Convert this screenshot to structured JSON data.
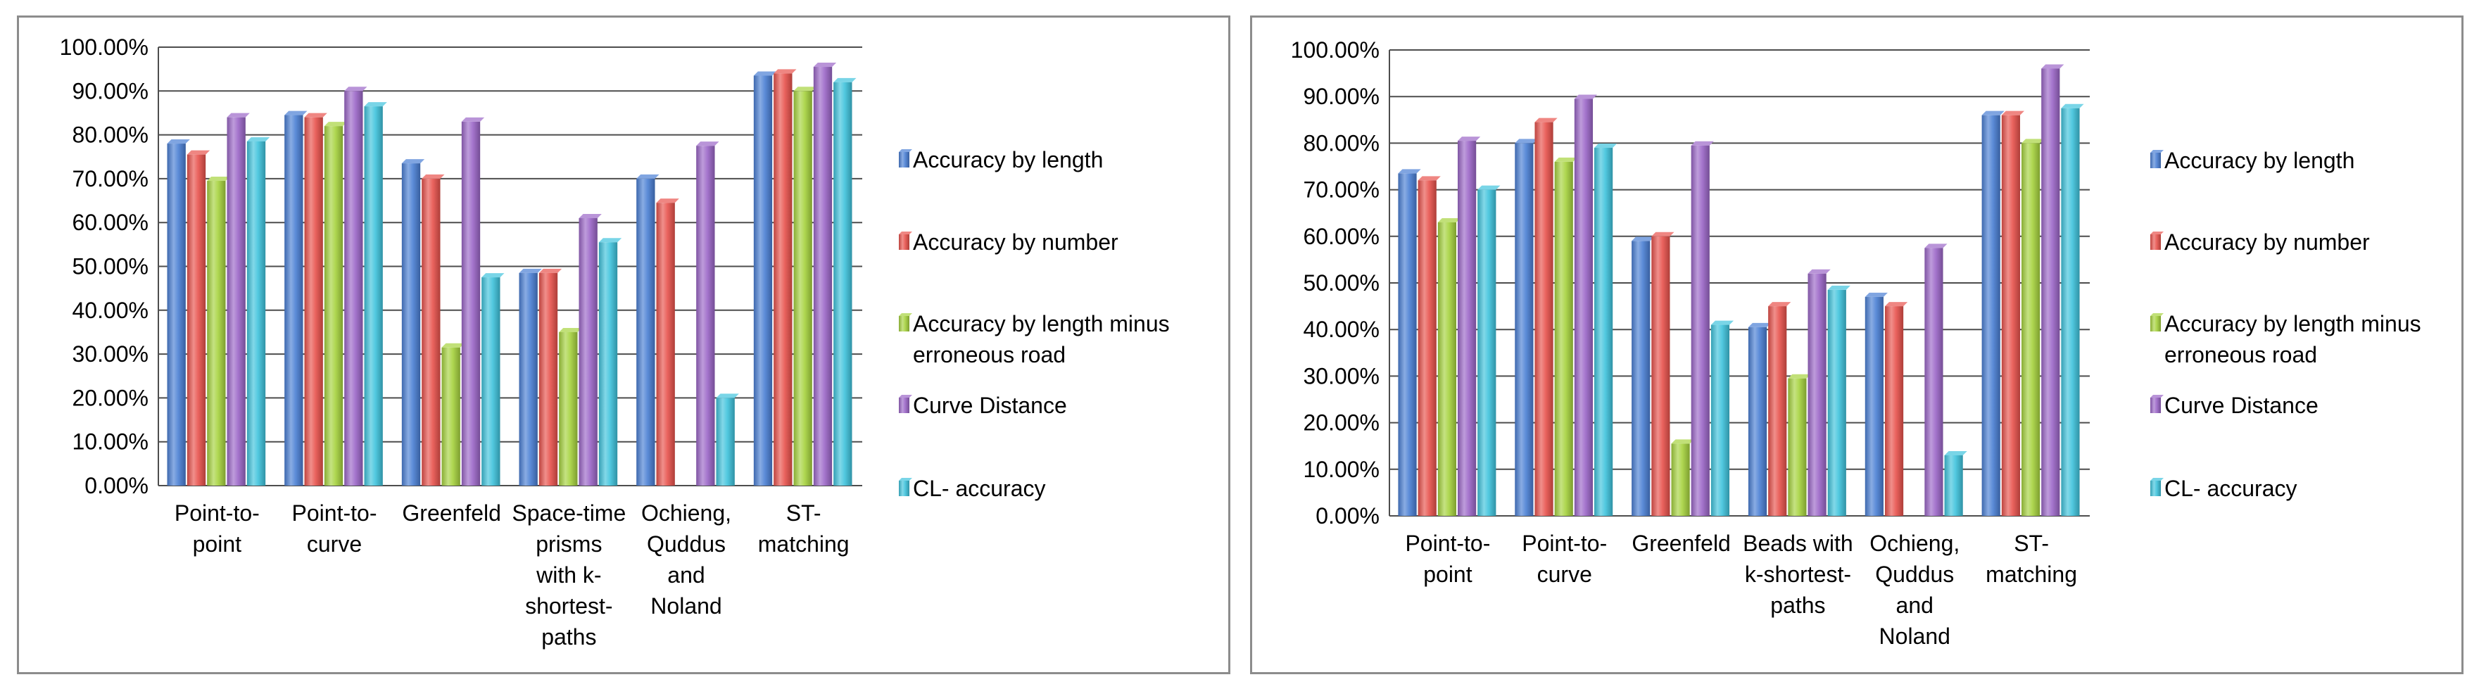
{
  "colors": {
    "accuracy_by_length": "#4a7fd4",
    "accuracy_by_number": "#e8524c",
    "accuracy_minus_erroneous": "#a6d23e",
    "curve_distance": "#9b66c7",
    "cl_accuracy": "#3fc3dc",
    "grid": "#4d4d4d"
  },
  "chart_data": [
    {
      "type": "bar",
      "title": "",
      "xlabel": "",
      "ylabel": "",
      "ylim": [
        0,
        1.0
      ],
      "yticks": [
        "0.00%",
        "10.00%",
        "20.00%",
        "30.00%",
        "40.00%",
        "50.00%",
        "60.00%",
        "70.00%",
        "80.00%",
        "90.00%",
        "100.00%"
      ],
      "grid": true,
      "legend_position": "right",
      "categories": [
        [
          "Point-to-",
          "point"
        ],
        [
          "Point-to-",
          "curve"
        ],
        [
          "Greenfeld"
        ],
        [
          "Space-time",
          "prisms",
          "with k-",
          "shortest-",
          "paths"
        ],
        [
          "Ochieng,",
          "Quddus",
          "and",
          "Noland"
        ],
        [
          "ST-",
          "matching"
        ]
      ],
      "series": [
        {
          "name": "Accuracy by length",
          "legend_lines": [
            "Accuracy by length"
          ],
          "color_key": "accuracy_by_length",
          "values": [
            0.78,
            0.845,
            0.735,
            0.485,
            0.7,
            0.935
          ]
        },
        {
          "name": "Accuracy by number",
          "legend_lines": [
            "Accuracy by number"
          ],
          "color_key": "accuracy_by_number",
          "values": [
            0.755,
            0.84,
            0.7,
            0.485,
            0.645,
            0.94
          ]
        },
        {
          "name": "Accuracy by length minus erroneous road",
          "legend_lines": [
            "Accuracy by length minus",
            "erroneous road"
          ],
          "color_key": "accuracy_minus_erroneous",
          "values": [
            0.695,
            0.82,
            0.315,
            0.35,
            0.0,
            0.9
          ]
        },
        {
          "name": "Curve Distance",
          "legend_lines": [
            "Curve Distance"
          ],
          "color_key": "curve_distance",
          "values": [
            0.84,
            0.9,
            0.83,
            0.61,
            0.775,
            0.955
          ]
        },
        {
          "name": "CL- accuracy",
          "legend_lines": [
            "CL- accuracy"
          ],
          "color_key": "cl_accuracy",
          "values": [
            0.785,
            0.865,
            0.475,
            0.555,
            0.2,
            0.92
          ]
        }
      ]
    },
    {
      "type": "bar",
      "title": "",
      "xlabel": "",
      "ylabel": "",
      "ylim": [
        0,
        1.0
      ],
      "yticks": [
        "0.00%",
        "10.00%",
        "20.00%",
        "30.00%",
        "40.00%",
        "50.00%",
        "60.00%",
        "70.00%",
        "80.00%",
        "90.00%",
        "100.00%"
      ],
      "grid": true,
      "legend_position": "right",
      "categories": [
        [
          "Point-to-",
          "point"
        ],
        [
          "Point-to-",
          "curve"
        ],
        [
          "Greenfeld"
        ],
        [
          "Beads with",
          "k-shortest-",
          "paths"
        ],
        [
          "Ochieng,",
          "Quddus",
          "and",
          "Noland"
        ],
        [
          "ST-",
          "matching"
        ]
      ],
      "series": [
        {
          "name": "Accuracy by length",
          "legend_lines": [
            "Accuracy by length"
          ],
          "color_key": "accuracy_by_length",
          "values": [
            0.735,
            0.8,
            0.59,
            0.405,
            0.47,
            0.86
          ]
        },
        {
          "name": "Accuracy by number",
          "legend_lines": [
            "Accuracy by number"
          ],
          "color_key": "accuracy_by_number",
          "values": [
            0.72,
            0.845,
            0.6,
            0.45,
            0.45,
            0.86
          ]
        },
        {
          "name": "Accuracy by length minus erroneous road",
          "legend_lines": [
            "Accuracy by length minus",
            "erroneous road"
          ],
          "color_key": "accuracy_minus_erroneous",
          "values": [
            0.63,
            0.76,
            0.155,
            0.295,
            0.0,
            0.8
          ]
        },
        {
          "name": "Curve Distance",
          "legend_lines": [
            "Curve Distance"
          ],
          "color_key": "curve_distance",
          "values": [
            0.805,
            0.895,
            0.795,
            0.52,
            0.575,
            0.96
          ]
        },
        {
          "name": "CL- accuracy",
          "legend_lines": [
            "CL- accuracy"
          ],
          "color_key": "cl_accuracy",
          "values": [
            0.7,
            0.79,
            0.41,
            0.485,
            0.13,
            0.875
          ]
        }
      ]
    }
  ]
}
